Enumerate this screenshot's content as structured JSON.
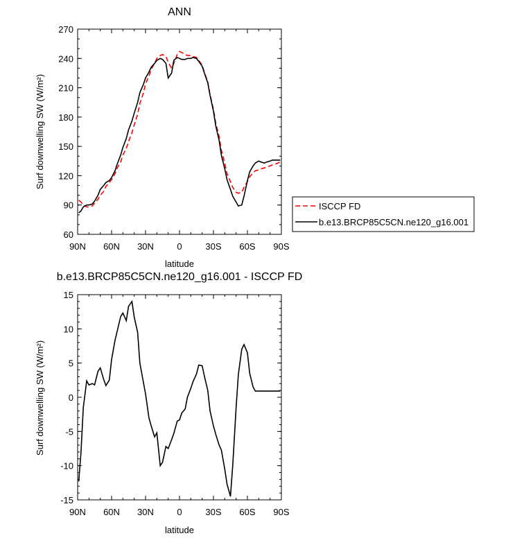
{
  "chart_data": [
    {
      "type": "line",
      "title": "ANN",
      "xlabel": "latitude",
      "ylabel": "Surf downwelling SW (W/m²)",
      "xlim": [
        -90,
        90
      ],
      "ylim": [
        60,
        270
      ],
      "x_ticks": [
        -90,
        -60,
        -30,
        0,
        30,
        60,
        90
      ],
      "x_tick_labels": [
        "90N",
        "60N",
        "30N",
        "0",
        "30S",
        "60S",
        "90S"
      ],
      "y_ticks": [
        60,
        90,
        120,
        150,
        180,
        210,
        240,
        270
      ],
      "legend": {
        "position": "right"
      },
      "series": [
        {
          "name": "ISCCP FD",
          "color": "#ff0000",
          "dash": "dashed",
          "x": [
            -89,
            -87,
            -85,
            -82,
            -80,
            -77,
            -75,
            -72,
            -70,
            -67,
            -65,
            -62,
            -60,
            -57,
            -55,
            -52,
            -50,
            -47,
            -45,
            -42,
            -40,
            -37,
            -35,
            -32,
            -30,
            -27,
            -25,
            -22,
            -20,
            -17,
            -15,
            -12,
            -10,
            -7,
            -5,
            -2,
            0,
            2,
            5,
            7,
            10,
            12,
            15,
            17,
            20,
            22,
            25,
            27,
            30,
            32,
            35,
            37,
            40,
            42,
            45,
            47,
            50,
            52,
            55,
            57,
            60,
            62,
            65,
            67,
            70,
            72,
            75,
            77,
            80,
            82,
            85,
            87,
            89
          ],
          "y": [
            95,
            93,
            90,
            88,
            88,
            89,
            92,
            96,
            100,
            104,
            109,
            113,
            116,
            122,
            128,
            134,
            141,
            148,
            155,
            164,
            172,
            183,
            194,
            204,
            214,
            222,
            229,
            235,
            240,
            243,
            244,
            242,
            236,
            230,
            235,
            244,
            247,
            246,
            244,
            243,
            243,
            242,
            241,
            238,
            233,
            226,
            216,
            203,
            188,
            174,
            160,
            146,
            133,
            122,
            114,
            108,
            103,
            102,
            103,
            108,
            114,
            119,
            123,
            125,
            126,
            127,
            128,
            129,
            130,
            131,
            132,
            133,
            134
          ]
        },
        {
          "name": "b.e13.BRCP85C5CN.ne120_g16.001",
          "color": "#000000",
          "dash": "solid",
          "x": [
            -89,
            -87,
            -85,
            -82,
            -80,
            -77,
            -75,
            -72,
            -70,
            -67,
            -65,
            -62,
            -60,
            -57,
            -55,
            -52,
            -50,
            -47,
            -45,
            -42,
            -40,
            -37,
            -35,
            -32,
            -30,
            -27,
            -25,
            -22,
            -20,
            -17,
            -15,
            -12,
            -10,
            -7,
            -5,
            -2,
            0,
            2,
            5,
            7,
            10,
            12,
            15,
            17,
            20,
            22,
            25,
            27,
            30,
            32,
            35,
            37,
            40,
            42,
            45,
            47,
            50,
            52,
            55,
            57,
            60,
            62,
            65,
            67,
            70,
            72,
            75,
            77,
            80,
            82,
            85,
            87,
            89
          ],
          "y": [
            82,
            84,
            88,
            90,
            90,
            91,
            94,
            100,
            106,
            110,
            113,
            115,
            118,
            125,
            132,
            141,
            149,
            158,
            167,
            176,
            184,
            195,
            205,
            213,
            220,
            226,
            231,
            235,
            238,
            240,
            239,
            235,
            220,
            225,
            238,
            241,
            240,
            239,
            239,
            240,
            240,
            241,
            240,
            237,
            232,
            225,
            215,
            202,
            186,
            171,
            156,
            141,
            127,
            116,
            106,
            99,
            93,
            89,
            90,
            99,
            115,
            124,
            130,
            133,
            135,
            134,
            133,
            134,
            135,
            136,
            136,
            136,
            136
          ]
        }
      ]
    },
    {
      "type": "line",
      "title": "b.e13.BRCP85C5CN.ne120_g16.001 - ISCCP FD",
      "xlabel": "latitude",
      "ylabel": "Surf downwelling SW (W/m²)",
      "xlim": [
        -90,
        90
      ],
      "ylim": [
        -15,
        15
      ],
      "x_ticks": [
        -90,
        -60,
        -30,
        0,
        30,
        60,
        90
      ],
      "x_tick_labels": [
        "90N",
        "60N",
        "30N",
        "0",
        "30S",
        "60S",
        "90S"
      ],
      "y_ticks": [
        -15,
        -10,
        -5,
        0,
        5,
        10,
        15
      ],
      "series": [
        {
          "color": "#000000",
          "dash": "solid",
          "x": [
            -89,
            -87,
            -85,
            -82,
            -80,
            -77,
            -75,
            -72,
            -70,
            -67,
            -65,
            -62,
            -60,
            -57,
            -55,
            -52,
            -50,
            -47,
            -45,
            -42,
            -40,
            -37,
            -35,
            -32,
            -30,
            -27,
            -25,
            -22,
            -20,
            -17,
            -15,
            -12,
            -10,
            -7,
            -5,
            -2,
            0,
            2,
            5,
            7,
            10,
            12,
            15,
            17,
            20,
            22,
            25,
            27,
            30,
            32,
            35,
            37,
            40,
            42,
            45,
            47,
            50,
            52,
            55,
            57,
            60,
            62,
            65,
            67,
            70,
            72,
            75,
            77,
            80,
            82,
            85,
            87,
            89
          ],
          "y": [
            -12.3,
            -8.0,
            -1.5,
            2.4,
            1.8,
            2.0,
            1.8,
            3.8,
            4.3,
            2.6,
            1.7,
            2.5,
            5.5,
            8.3,
            9.7,
            11.8,
            12.3,
            11.2,
            13.3,
            14.0,
            11.7,
            9.5,
            5.0,
            2.3,
            0.5,
            -3.0,
            -4.2,
            -5.8,
            -5.2,
            -10.0,
            -9.5,
            -7.2,
            -7.5,
            -6.2,
            -5.3,
            -3.5,
            -3.3,
            -2.3,
            -1.7,
            0.0,
            1.3,
            2.3,
            3.4,
            4.7,
            4.6,
            3.1,
            1.0,
            -2.0,
            -4.2,
            -5.4,
            -7.0,
            -7.7,
            -10.5,
            -12.7,
            -14.5,
            -10.0,
            -1.5,
            3.3,
            7.0,
            7.7,
            6.5,
            3.5,
            1.5,
            0.9,
            0.9,
            0.9,
            0.9,
            0.9,
            0.9,
            0.9,
            0.9,
            0.9,
            0.9
          ]
        }
      ]
    }
  ]
}
